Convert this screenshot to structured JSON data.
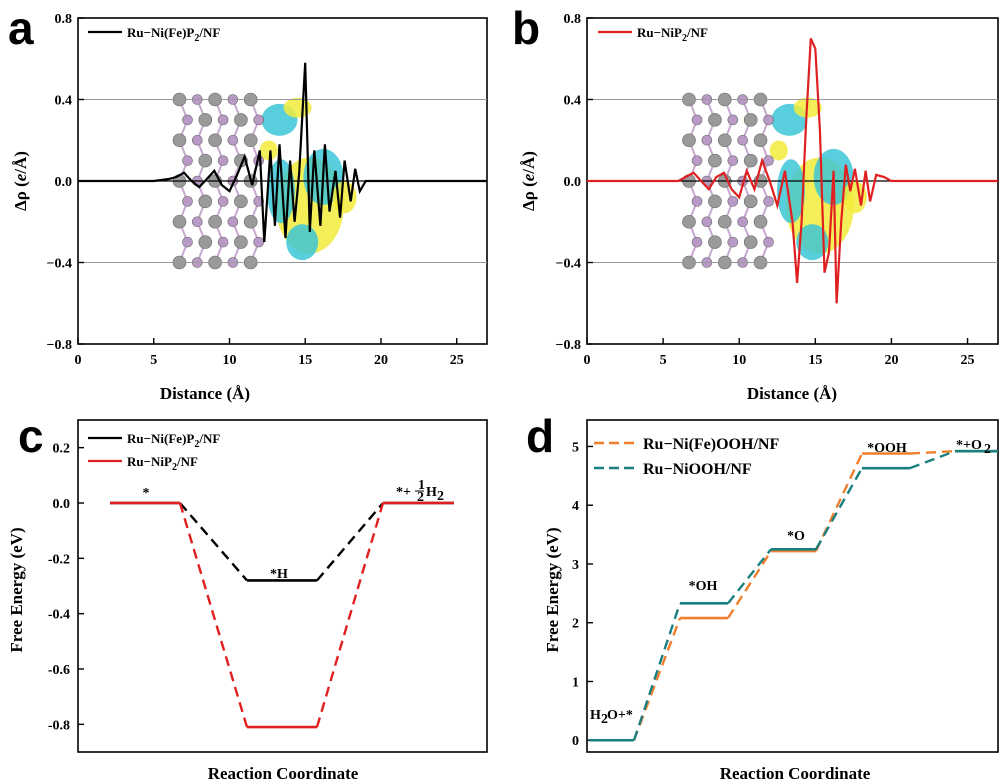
{
  "chart_data": [
    {
      "id": "a",
      "panel_label": "a",
      "type": "line",
      "xlabel": "Distance (Å)",
      "ylabel": "Δρ (e/Å)",
      "xlim": [
        0,
        27
      ],
      "ylim": [
        -0.8,
        0.8
      ],
      "xticks": [
        0,
        5,
        10,
        15,
        20,
        25
      ],
      "yticks": [
        -0.8,
        -0.4,
        0.0,
        0.4,
        0.8
      ],
      "ytick_labels": [
        "−0.8",
        "−0.4",
        "0.0",
        "0.4",
        "0.8"
      ],
      "hlines": [
        0.4,
        -0.4
      ],
      "legend": "top-left",
      "series": [
        {
          "name": "Ru−Ni(Fe)P2/NF",
          "color": "#000000",
          "x": [
            0,
            5,
            6,
            6.5,
            7,
            7.5,
            8,
            8.5,
            9,
            9.5,
            10,
            10.5,
            11,
            11.5,
            12,
            12.3,
            12.7,
            13,
            13.3,
            13.7,
            14,
            14.3,
            14.6,
            15,
            15.3,
            15.6,
            16,
            16.3,
            16.6,
            17,
            17.3,
            17.6,
            18,
            18.3,
            18.6,
            19,
            19.5,
            27
          ],
          "y": [
            0,
            0,
            0.01,
            0.02,
            0.04,
            0.0,
            -0.03,
            0.01,
            0.05,
            -0.02,
            -0.05,
            0.03,
            0.12,
            -0.02,
            0.15,
            -0.3,
            0.15,
            -0.22,
            0.18,
            -0.28,
            0.1,
            -0.2,
            0.04,
            0.58,
            -0.25,
            0.15,
            -0.22,
            0.18,
            -0.15,
            0.05,
            -0.18,
            0.1,
            -0.1,
            0.06,
            -0.05,
            0.0,
            0,
            0
          ]
        }
      ]
    },
    {
      "id": "b",
      "panel_label": "b",
      "type": "line",
      "xlabel": "Distance (Å)",
      "ylabel": "Δρ (e/Å)",
      "xlim": [
        0,
        27
      ],
      "ylim": [
        -0.8,
        0.8
      ],
      "xticks": [
        0,
        5,
        10,
        15,
        20,
        25
      ],
      "yticks": [
        -0.8,
        -0.4,
        0.0,
        0.4,
        0.8
      ],
      "ytick_labels": [
        "−0.8",
        "−0.4",
        "0.0",
        "0.4",
        "0.8"
      ],
      "hlines": [
        0.4,
        -0.4
      ],
      "legend": "top-left",
      "series": [
        {
          "name": "Ru−NiP2/NF",
          "color": "#e02020",
          "x": [
            0,
            6,
            6.5,
            7,
            7.5,
            8,
            8.5,
            9,
            9.5,
            10,
            10.5,
            11,
            11.5,
            12,
            12.5,
            13,
            13.5,
            13.8,
            14.1,
            14.4,
            14.7,
            15,
            15.3,
            15.6,
            15.9,
            16.2,
            16.4,
            16.7,
            17,
            17.3,
            17.6,
            18,
            18.3,
            18.6,
            19,
            19.5,
            20,
            27
          ],
          "y": [
            0,
            0,
            0.02,
            0.04,
            0.0,
            -0.04,
            0.02,
            0.04,
            -0.04,
            -0.08,
            0.05,
            -0.04,
            0.1,
            0.0,
            -0.12,
            0.05,
            -0.2,
            -0.5,
            -0.2,
            0.3,
            0.7,
            0.65,
            0.25,
            -0.45,
            -0.35,
            0.05,
            -0.6,
            -0.2,
            0.08,
            -0.05,
            0.06,
            -0.12,
            0.05,
            -0.1,
            0.03,
            0.02,
            0,
            0
          ]
        }
      ]
    },
    {
      "id": "c",
      "panel_label": "c",
      "type": "line",
      "xlabel": "Reaction Coordinate",
      "ylabel": "Free Energy (eV)",
      "ylim": [
        -0.9,
        0.3
      ],
      "yticks": [
        -0.8,
        -0.6,
        -0.4,
        -0.2,
        0.0,
        0.2
      ],
      "ytick_labels": [
        "-0.8",
        "-0.6",
        "-0.4",
        "-0.2",
        "0.0",
        "0.2"
      ],
      "states": [
        "*",
        "*H",
        "*+½H2"
      ],
      "annotations": {
        "star": "*",
        "h": "*H",
        "final_pre": "*+",
        "half_num": "1",
        "half_den": "2",
        "h2": "H",
        "h2_sub": "2"
      },
      "legend": "top-left",
      "series": [
        {
          "name": "Ru−Ni(Fe)P2/NF",
          "color": "#000000",
          "values": [
            0.0,
            -0.28,
            0.0
          ]
        },
        {
          "name": "Ru−NiP2/NF",
          "color": "#e02020",
          "values": [
            0.0,
            -0.81,
            0.0
          ]
        }
      ]
    },
    {
      "id": "d",
      "panel_label": "d",
      "type": "line",
      "xlabel": "Reaction Coordinate",
      "ylabel": "Free Energy (eV)",
      "ylim": [
        -0.2,
        5.45
      ],
      "yticks": [
        0,
        1,
        2,
        3,
        4,
        5
      ],
      "ytick_labels": [
        "0",
        "1",
        "2",
        "3",
        "4",
        "5"
      ],
      "states": [
        "H2O+*",
        "*OH",
        "*O",
        "*OOH",
        "*+O2"
      ],
      "annotations": {
        "h2o_a": "H",
        "h2o_sub": "2",
        "h2o_b": "O+*",
        "oh": "*OH",
        "o": "*O",
        "ooh": "*OOH",
        "o2_a": "*+O",
        "o2_sub": "2"
      },
      "legend": "top-left",
      "series": [
        {
          "name": "Ru−Ni(Fe)OOH/NF",
          "color": "#ef7f2e",
          "values": [
            0.0,
            2.08,
            3.22,
            4.88,
            4.92
          ]
        },
        {
          "name": "Ru−NiOOH/NF",
          "color": "#1a7f7f",
          "values": [
            0.0,
            2.33,
            3.25,
            4.63,
            4.92
          ]
        }
      ]
    }
  ],
  "legend_parts": {
    "a": {
      "main": "Ru−Ni(Fe)P",
      "sub": "2",
      "tail": "/NF"
    },
    "b": {
      "main": "Ru−NiP",
      "sub": "2",
      "tail": "/NF"
    },
    "c1": {
      "main": "Ru−Ni(Fe)P",
      "sub": "2",
      "tail": "/NF"
    },
    "c2": {
      "main": "Ru−NiP",
      "sub": "2",
      "tail": "/NF"
    },
    "d1": {
      "main": "Ru−Ni(Fe)OOH/NF"
    },
    "d2": {
      "main": "Ru−NiOOH/NF"
    }
  },
  "axis_title_parts": {
    "drho_a": "Δρ (",
    "drho_e": "e",
    "drho_b": "/Å)"
  },
  "colors": {
    "isosurface_yellow": "#f2ec3c",
    "isosurface_cyan": "#3cc6d6",
    "atom_gray": "#9a9a9a",
    "atom_purple": "#b99ac6",
    "bond": "#c7a9d0"
  }
}
